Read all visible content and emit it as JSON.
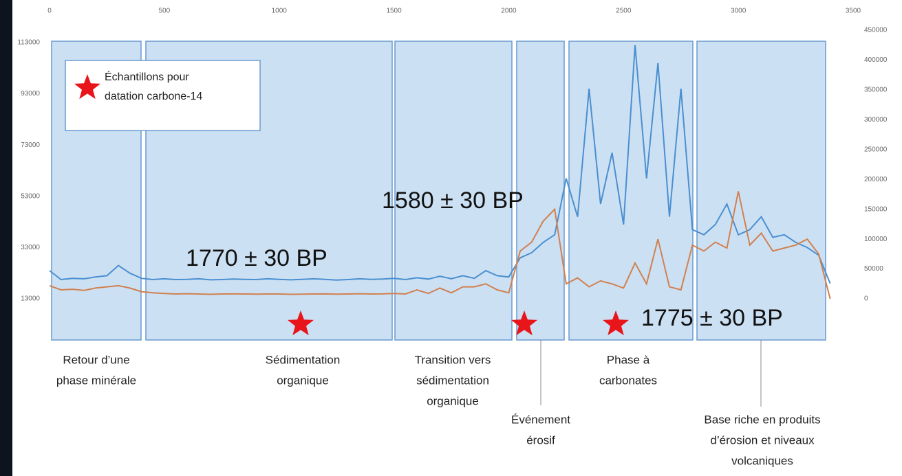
{
  "chart_data": {
    "type": "line",
    "x": [
      0,
      50,
      100,
      150,
      200,
      250,
      300,
      350,
      400,
      450,
      500,
      550,
      600,
      650,
      700,
      750,
      800,
      850,
      900,
      950,
      1000,
      1050,
      1100,
      1150,
      1200,
      1250,
      1300,
      1350,
      1400,
      1450,
      1500,
      1550,
      1600,
      1650,
      1700,
      1750,
      1800,
      1850,
      1900,
      1950,
      2000,
      2050,
      2100,
      2150,
      2200,
      2250,
      2300,
      2350,
      2400,
      2450,
      2500,
      2550,
      2600,
      2650,
      2700,
      2750,
      2800,
      2850,
      2900,
      2950,
      3000,
      3050,
      3100,
      3150,
      3200,
      3250,
      3300,
      3350,
      3400
    ],
    "series": [
      {
        "color": "#4a8fd0",
        "values": [
          24000,
          20500,
          21000,
          20800,
          21500,
          22000,
          26000,
          23000,
          21000,
          20500,
          20800,
          20500,
          20600,
          20800,
          20400,
          20500,
          20700,
          20600,
          20500,
          20800,
          20600,
          20400,
          20600,
          20800,
          20600,
          20300,
          20500,
          20800,
          20600,
          20700,
          21000,
          20500,
          21200,
          20700,
          21800,
          20800,
          22000,
          21000,
          24000,
          22000,
          21500,
          29000,
          31000,
          35000,
          38000,
          60000,
          45000,
          95000,
          50000,
          70000,
          42000,
          112000,
          60000,
          105000,
          45000,
          95000,
          40000,
          38000,
          42000,
          50000,
          38000,
          40000,
          45000,
          37000,
          38000,
          35000,
          33000,
          30000,
          19000
        ]
      },
      {
        "color": "#d08050",
        "axis": "y2",
        "values": [
          22000,
          15000,
          16000,
          14000,
          18000,
          20000,
          22000,
          18000,
          12000,
          10000,
          9000,
          8000,
          8500,
          8000,
          7500,
          8000,
          8200,
          8000,
          7800,
          8000,
          8000,
          7500,
          7800,
          8000,
          8200,
          7800,
          8000,
          8500,
          8000,
          8200,
          9000,
          8000,
          15000,
          9000,
          18000,
          10000,
          20000,
          20000,
          25000,
          15000,
          10000,
          80000,
          95000,
          130000,
          150000,
          25000,
          35000,
          20000,
          30000,
          25000,
          18000,
          60000,
          25000,
          100000,
          20000,
          15000,
          90000,
          80000,
          95000,
          85000,
          180000,
          90000,
          110000,
          80000,
          85000,
          90000,
          100000,
          75000,
          0
        ]
      }
    ],
    "xlim": [
      0,
      3500
    ],
    "xticks": [
      0,
      500,
      1000,
      1500,
      2000,
      2500,
      3000,
      3500
    ],
    "ylim": [
      13000,
      113000
    ],
    "yticks": [
      13000,
      33000,
      53000,
      73000,
      93000,
      113000
    ],
    "y2lim": [
      0,
      450000
    ],
    "y2ticks": [
      0,
      50000,
      100000,
      150000,
      200000,
      250000,
      300000,
      350000,
      400000,
      450000
    ],
    "grid": false,
    "legend": [
      "Échantillons pour",
      "datation carbone-14"
    ],
    "dates": [
      "1770 ± 30 BP",
      "1580 ± 30 BP",
      "1775 ± 30 BP"
    ],
    "phases": [
      [
        "Retour d’une",
        "phase minérale"
      ],
      [
        "Sédimentation",
        "organique"
      ],
      [
        "Transition vers",
        "sédimentation",
        "organique"
      ],
      [
        "Événement",
        "érosif"
      ],
      [
        "Phase à",
        "carbonates"
      ],
      [
        "Base riche en produits",
        "d’érosion et niveaux",
        "volcaniques"
      ]
    ]
  }
}
